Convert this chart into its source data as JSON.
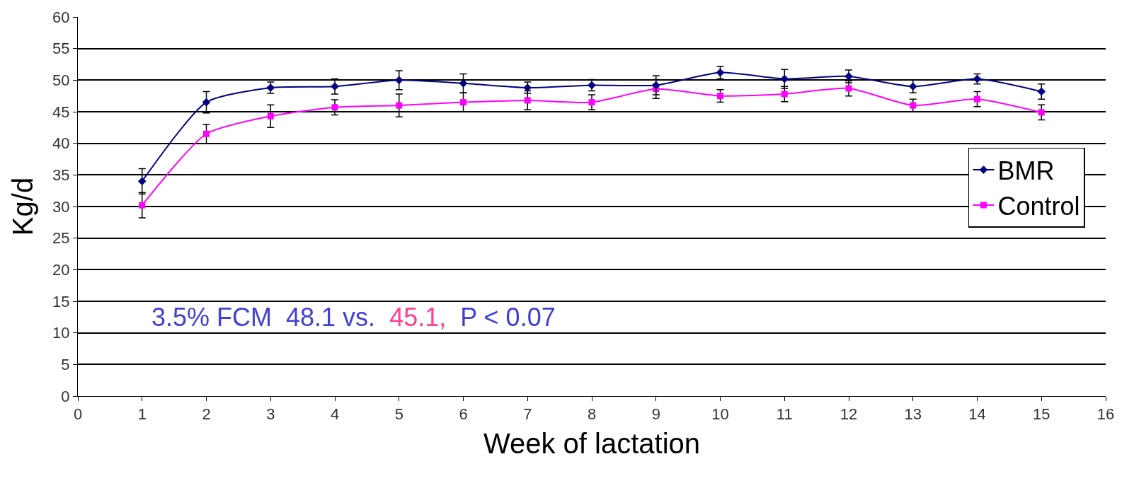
{
  "chart_data": {
    "type": "line",
    "xlabel": "Week of lactation",
    "ylabel": "Kg/d",
    "x": [
      1,
      2,
      3,
      4,
      5,
      6,
      7,
      8,
      9,
      10,
      11,
      12,
      13,
      14,
      15
    ],
    "series": [
      {
        "name": "BMR",
        "color": "#000080",
        "marker": "diamond",
        "values": [
          34,
          46.5,
          48.8,
          49,
          50,
          49.5,
          48.8,
          49.2,
          49.2,
          51.2,
          50.2,
          50.6,
          49,
          50.2,
          48.2
        ],
        "errors": [
          2,
          1.7,
          0.9,
          1.2,
          1.5,
          1.5,
          0.9,
          0.9,
          1.5,
          1,
          1.5,
          1,
          1,
          0.8,
          1.2
        ]
      },
      {
        "name": "Control",
        "color": "#ff00ff",
        "marker": "square",
        "values": [
          30.2,
          41.5,
          44.3,
          45.7,
          46,
          46.5,
          46.8,
          46.5,
          48.6,
          47.5,
          47.8,
          48.7,
          46,
          47,
          44.9
        ],
        "errors": [
          2,
          1.5,
          1.8,
          1.2,
          1.8,
          1.5,
          1.5,
          1.2,
          1.5,
          1,
          1.2,
          1.2,
          1,
          1.2,
          1.2
        ]
      }
    ],
    "xlim": [
      0,
      16
    ],
    "xticks": [
      0,
      1,
      2,
      3,
      4,
      5,
      6,
      7,
      8,
      9,
      10,
      11,
      12,
      13,
      14,
      15,
      16
    ],
    "ylim": [
      0,
      60
    ],
    "yticks": [
      0,
      5,
      10,
      15,
      20,
      25,
      30,
      35,
      40,
      45,
      50,
      55,
      60
    ],
    "grid": "y",
    "legend": "right",
    "line_style": "solid",
    "annotations": [
      "3.5% FCM  48.1 vs.",
      "45.1,",
      "P < 0.07"
    ]
  }
}
